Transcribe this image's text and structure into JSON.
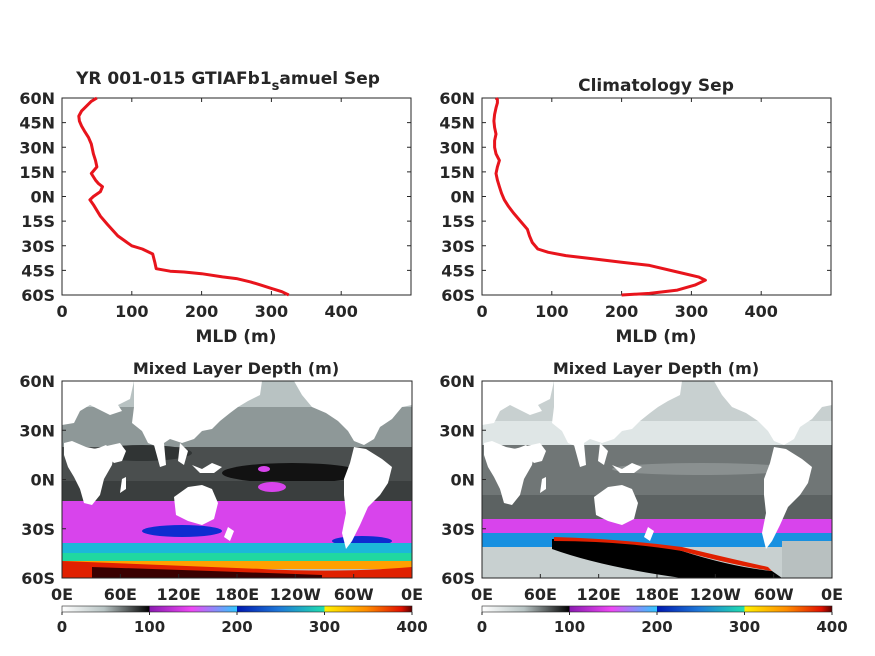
{
  "chart_data": [
    {
      "type": "line",
      "title": "YR 001-015 GTIAFb1",
      "title_sub": "s",
      "title_rest": "amuel Sep",
      "xlabel": "MLD (m)",
      "ylabel": "",
      "xlim": [
        0,
        500
      ],
      "ylim": [
        -60,
        60
      ],
      "xticks": [
        0,
        100,
        200,
        300,
        400
      ],
      "yticks": [
        60,
        45,
        30,
        15,
        0,
        -15,
        -30,
        -45,
        -60
      ],
      "ytick_labels": [
        "60N",
        "45N",
        "30N",
        "15N",
        "0N",
        "15S",
        "30S",
        "45S",
        "60S"
      ],
      "color": "#e8141c",
      "series": [
        {
          "x": [
            325,
            315,
            300,
            285,
            270,
            250,
            230,
            200,
            175,
            155,
            135,
            133,
            130,
            115,
            100,
            80,
            65,
            55,
            45,
            40,
            45,
            55,
            58,
            52,
            48,
            42,
            50,
            48,
            45,
            42,
            38,
            32,
            28,
            25,
            24,
            28,
            35,
            42,
            50
          ],
          "y": [
            -60,
            -58,
            -56,
            -54,
            -52,
            -50,
            -49,
            -47,
            -46,
            -45.5,
            -44,
            -40,
            -35,
            -32,
            -30,
            -24,
            -17,
            -12,
            -5,
            -2,
            0,
            3,
            6,
            8,
            10,
            14,
            18,
            22,
            26,
            32,
            36,
            40,
            43,
            46,
            49,
            52,
            55,
            58,
            60
          ]
        }
      ]
    },
    {
      "type": "line",
      "title": "Climatology Sep",
      "xlabel": "MLD (m)",
      "ylabel": "",
      "xlim": [
        0,
        500
      ],
      "ylim": [
        -60,
        60
      ],
      "xticks": [
        0,
        100,
        200,
        300,
        400
      ],
      "yticks": [
        60,
        45,
        30,
        15,
        0,
        -15,
        -30,
        -45,
        -60
      ],
      "ytick_labels": [
        "60N",
        "45N",
        "30N",
        "15N",
        "0N",
        "15S",
        "30S",
        "45S",
        "60S"
      ],
      "color": "#e8141c",
      "series": [
        {
          "x": [
            200,
            240,
            280,
            305,
            320,
            310,
            280,
            240,
            200,
            160,
            120,
            95,
            80,
            72,
            68,
            65,
            55,
            45,
            38,
            32,
            28,
            25,
            22,
            20,
            22,
            25,
            20,
            18,
            18,
            20,
            18,
            17,
            18,
            20,
            22,
            22,
            20
          ],
          "y": [
            -60,
            -59,
            -57,
            -54,
            -51,
            -49,
            -46,
            -42,
            -40,
            -38,
            -36,
            -34,
            -32,
            -28,
            -24,
            -20,
            -15,
            -10,
            -6,
            -2,
            2,
            6,
            10,
            14,
            18,
            22,
            26,
            30,
            34,
            38,
            42,
            46,
            50,
            54,
            57,
            59,
            60
          ]
        }
      ]
    },
    {
      "type": "heatmap",
      "title": "Mixed Layer Depth (m)",
      "xtick_labels": [
        "0E",
        "60E",
        "120E",
        "180E",
        "120W",
        "60W",
        "0E"
      ],
      "ytick_labels": [
        "60N",
        "30N",
        "0N",
        "30S",
        "60S"
      ],
      "colorbar": {
        "range": [
          0,
          400
        ],
        "tick_labels": [
          "0",
          "100",
          "200",
          "300",
          "400"
        ]
      },
      "colors": {
        "land": "#ffffff",
        "deep_tropics": "#1c1c1c",
        "southern_band": "#e23df0",
        "max": "#ff2a00"
      }
    },
    {
      "type": "heatmap",
      "title": "Mixed Layer Depth (m)",
      "xtick_labels": [
        "0E",
        "60E",
        "120E",
        "180E",
        "120W",
        "60W",
        "0E"
      ],
      "ytick_labels": [
        "60N",
        "30N",
        "0N",
        "30S",
        "60S"
      ],
      "colorbar": {
        "range": [
          0,
          400
        ],
        "tick_labels": [
          "0",
          "100",
          "200",
          "300",
          "400"
        ]
      },
      "colors": {
        "land": "#ffffff",
        "deep_tropics": "#5c5c5c",
        "southern_band": "#e23df0",
        "max": "#000000"
      }
    }
  ]
}
